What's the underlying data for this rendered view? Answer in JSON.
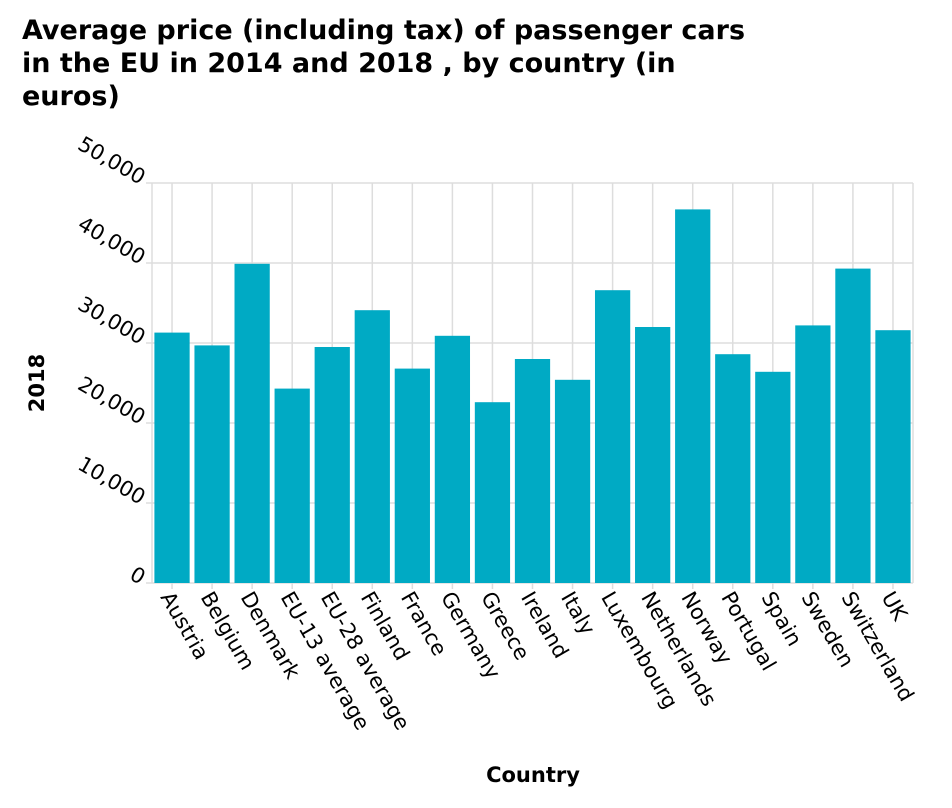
{
  "chart_data": {
    "type": "bar",
    "title": "Average price (including tax) of passenger cars in the EU in 2014 and 2018 , by country (in euros)",
    "xlabel": "Country",
    "ylabel": "2018",
    "categories": [
      "Austria",
      "Belgium",
      "Denmark",
      "EU-13 average",
      "EU-28 average",
      "Finland",
      "France",
      "Germany",
      "Greece",
      "Ireland",
      "Italy",
      "Luxembourg",
      "Netherlands",
      "Norway",
      "Portugal",
      "Spain",
      "Sweden",
      "Switzerland",
      "UK"
    ],
    "values": [
      31300,
      29700,
      39900,
      24300,
      29500,
      34100,
      26800,
      30900,
      22600,
      28000,
      25400,
      36600,
      32000,
      46700,
      28600,
      26400,
      32200,
      39300,
      31600
    ],
    "ylim": [
      0,
      50000
    ],
    "yticks": [
      0,
      10000,
      20000,
      30000,
      40000,
      50000
    ],
    "ytick_labels": [
      "0",
      "10,000",
      "20,000",
      "30,000",
      "40,000",
      "50,000"
    ],
    "grid": true,
    "legend": "none",
    "bar_color": "#00aac4",
    "grid_color": "#dddddd"
  }
}
